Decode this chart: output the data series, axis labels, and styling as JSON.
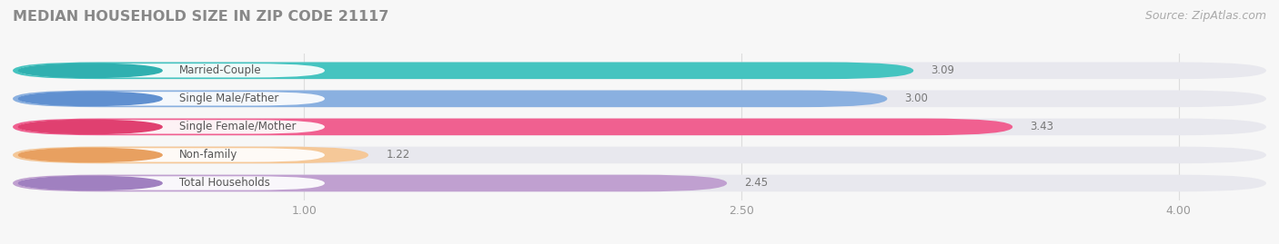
{
  "title": "MEDIAN HOUSEHOLD SIZE IN ZIP CODE 21117",
  "source": "Source: ZipAtlas.com",
  "categories": [
    "Married-Couple",
    "Single Male/Father",
    "Single Female/Mother",
    "Non-family",
    "Total Households"
  ],
  "values": [
    3.09,
    3.0,
    3.43,
    1.22,
    2.45
  ],
  "bar_colors": [
    "#45c4c0",
    "#8ab0e0",
    "#f06090",
    "#f5c898",
    "#c0a0d0"
  ],
  "label_accent_colors": [
    "#30b0b0",
    "#6090d0",
    "#e04070",
    "#e8a060",
    "#a080c0"
  ],
  "xlim": [
    0,
    4.3
  ],
  "xmin": 0,
  "xmax": 4.3,
  "xticks": [
    1.0,
    2.5,
    4.0
  ],
  "title_color": "#888888",
  "source_color": "#aaaaaa",
  "bg_color": "#f7f7f7",
  "bar_bg_color": "#e8e8ee",
  "bar_height": 0.6,
  "label_box_color": "#ffffff",
  "label_text_color": "#555555",
  "value_label_color": "#777777",
  "grid_color": "#dddddd",
  "tick_label_color": "#999999"
}
